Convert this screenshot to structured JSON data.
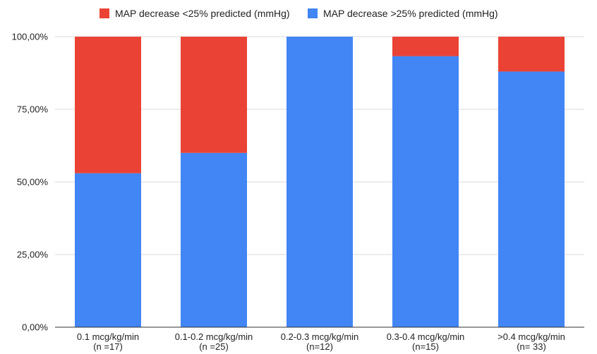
{
  "chart_data": {
    "type": "bar",
    "stacked": true,
    "categories": [
      [
        "0.1 mcg/kg/min",
        "(n =17)"
      ],
      [
        "0.1-0.2 mcg/kg/min",
        "(n =25)"
      ],
      [
        "0.2-0.3 mcg/kg/min",
        "(n=12)"
      ],
      [
        "0.3-0.4 mcg/kg/min",
        "(n=15)"
      ],
      [
        ">0.4 mcg/kg/min",
        "(n= 33)"
      ]
    ],
    "series": [
      {
        "name": "MAP decrease >25% predicted (mmHg)",
        "color": "#4285f4",
        "values": [
          53,
          60,
          100,
          93.3,
          88
        ]
      },
      {
        "name": "MAP decrease <25% predicted (mmHg)",
        "color": "#ea4335",
        "values": [
          47,
          40,
          0,
          6.7,
          12
        ]
      }
    ],
    "legend_order": [
      1,
      0
    ],
    "legend_position": "top",
    "ylim": [
      0,
      100
    ],
    "yticks": [
      {
        "value": 0,
        "label": "0,00%"
      },
      {
        "value": 25,
        "label": "25,00%"
      },
      {
        "value": 50,
        "label": "50,00%"
      },
      {
        "value": 75,
        "label": "75,00%"
      },
      {
        "value": 100,
        "label": "100,00%"
      }
    ],
    "grid": true
  }
}
